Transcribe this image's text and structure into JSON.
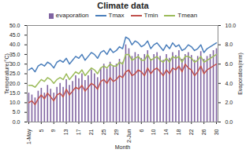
{
  "chart_data": {
    "type": "line",
    "title": "Climate data",
    "x_label": "Month",
    "y_label": "Temperature(°C)",
    "y2_label": "Evaporation(mm)",
    "categories": [
      "1-May",
      null,
      null,
      null,
      "5",
      null,
      null,
      null,
      "9",
      null,
      null,
      null,
      "13",
      null,
      null,
      null,
      "17",
      null,
      null,
      null,
      "21",
      null,
      null,
      null,
      "25",
      null,
      null,
      null,
      "29",
      null,
      null,
      null,
      "2-Jun",
      null,
      null,
      null,
      "6",
      null,
      null,
      null,
      "10",
      null,
      null,
      null,
      "14",
      null,
      null,
      null,
      "18",
      null,
      null,
      null,
      "22",
      null,
      null,
      null,
      "26",
      null,
      null,
      null,
      "30"
    ],
    "series": [
      {
        "name": "evaporation",
        "type": "bar",
        "axis": "y2",
        "color": "#8064a2",
        "values": [
          3.0,
          2.8,
          2.5,
          3.2,
          3.5,
          3.0,
          3.8,
          3.4,
          3.0,
          3.6,
          4.0,
          3.6,
          4.4,
          3.8,
          4.2,
          4.8,
          4.5,
          5.0,
          4.3,
          4.8,
          5.4,
          5.0,
          4.6,
          5.6,
          6.0,
          5.5,
          6.2,
          5.8,
          6.0,
          6.5,
          6.2,
          8.0,
          7.6,
          6.8,
          7.2,
          7.0,
          6.6,
          7.0,
          7.4,
          6.5,
          7.0,
          7.2,
          6.8,
          6.4,
          7.0,
          6.6,
          7.2,
          6.9,
          7.4,
          6.5,
          7.0,
          7.2,
          6.9,
          6.4,
          6.8,
          7.3,
          6.5,
          6.8,
          7.0,
          7.4,
          7.6
        ]
      },
      {
        "name": "Tmax",
        "type": "line",
        "color": "#4a7ebb",
        "values": [
          27,
          28,
          26,
          29,
          30,
          29,
          31,
          30,
          28,
          31,
          32,
          31,
          33,
          30,
          32,
          34,
          33,
          35,
          32,
          34,
          36,
          35,
          33,
          36,
          37,
          35,
          38,
          36,
          37,
          39,
          38,
          44,
          43,
          40,
          42,
          41,
          39,
          40,
          42,
          38,
          40,
          41,
          39,
          37,
          40,
          38,
          41,
          39,
          40,
          37,
          38,
          40,
          39,
          37,
          38,
          40,
          36,
          38,
          39,
          40,
          41
        ]
      },
      {
        "name": "Tmin",
        "type": "line",
        "color": "#c0504d",
        "values": [
          10,
          11,
          9,
          12,
          14,
          12,
          15,
          13,
          11,
          14,
          15,
          13,
          17,
          14,
          16,
          18,
          17,
          19,
          16,
          18,
          20,
          19,
          17,
          21,
          22,
          20,
          23,
          21,
          22,
          24,
          23,
          26,
          27,
          24,
          25,
          27,
          26,
          24,
          28,
          25,
          27,
          28,
          26,
          24,
          27,
          25,
          28,
          27,
          29,
          26,
          30,
          28,
          27,
          24,
          26,
          29,
          25,
          27,
          28,
          29,
          30
        ]
      },
      {
        "name": "Tmean",
        "type": "line",
        "color": "#9bbb59",
        "values": [
          19,
          19,
          18,
          20,
          22,
          21,
          23,
          22,
          20,
          22,
          23,
          22,
          25,
          22,
          24,
          26,
          25,
          27,
          24,
          26,
          28,
          27,
          25,
          28,
          29,
          28,
          30,
          29,
          29,
          31,
          30,
          35,
          35,
          32,
          33,
          34,
          32,
          32,
          35,
          32,
          33,
          34,
          32,
          31,
          33,
          31,
          34,
          33,
          34,
          31,
          34,
          34,
          33,
          31,
          32,
          34,
          31,
          32,
          33,
          34,
          35
        ]
      }
    ],
    "ylim": [
      0,
      50
    ],
    "yticks": [
      {
        "value": 0,
        "label": "0.0"
      },
      {
        "value": 5,
        "label": "5.0"
      },
      {
        "value": 10,
        "label": "10.0"
      },
      {
        "value": 15,
        "label": "15.0"
      },
      {
        "value": 20,
        "label": "20.0"
      },
      {
        "value": 25,
        "label": "25.0"
      },
      {
        "value": 30,
        "label": "30.0"
      },
      {
        "value": 35,
        "label": "35.0"
      },
      {
        "value": 40,
        "label": "40.0"
      },
      {
        "value": 45,
        "label": "45.0"
      },
      {
        "value": 50,
        "label": "50.0"
      }
    ],
    "y2lim": [
      0,
      10
    ],
    "y2ticks": [
      {
        "value": 0,
        "label": "0.0"
      },
      {
        "value": 2,
        "label": "2.0"
      },
      {
        "value": 4,
        "label": "4.0"
      },
      {
        "value": 6,
        "label": "6.0"
      },
      {
        "value": 8,
        "label": "8.0"
      },
      {
        "value": 10,
        "label": "10.0"
      }
    ],
    "grid": false,
    "legend": "top"
  }
}
